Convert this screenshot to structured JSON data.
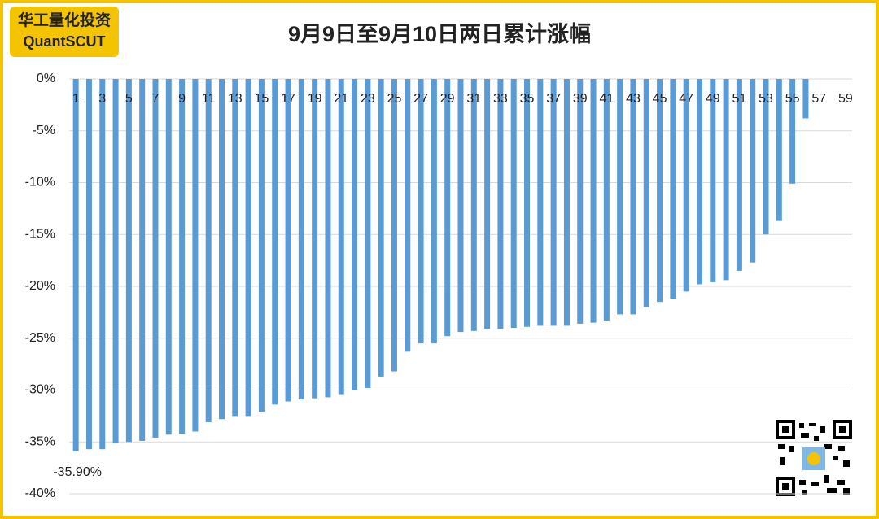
{
  "chart_data": {
    "type": "bar",
    "title": "9月9日至9月10日两日累计涨幅",
    "logo": {
      "cn": "华工量化投资",
      "en": "QuantSCUT"
    },
    "categories": [
      1,
      null,
      3,
      null,
      5,
      null,
      7,
      null,
      9,
      null,
      11,
      null,
      13,
      null,
      15,
      null,
      17,
      null,
      19,
      null,
      21,
      null,
      23,
      null,
      25,
      null,
      27,
      null,
      29,
      null,
      31,
      null,
      33,
      null,
      35,
      null,
      37,
      null,
      39,
      null,
      41,
      null,
      43,
      null,
      45,
      null,
      47,
      null,
      49,
      null,
      51,
      null,
      53,
      null,
      55,
      null,
      57,
      null,
      59
    ],
    "values": [
      -35.9,
      -35.7,
      -35.7,
      -35.1,
      -35.0,
      -34.9,
      -34.6,
      -34.3,
      -34.2,
      -34.0,
      -33.1,
      -32.8,
      -32.5,
      -32.5,
      -32.1,
      -31.4,
      -31.1,
      -30.9,
      -30.8,
      -30.7,
      -30.4,
      -30.0,
      -29.8,
      -28.7,
      -28.2,
      -26.3,
      -25.5,
      -25.5,
      -24.8,
      -24.4,
      -24.3,
      -24.1,
      -24.1,
      -24.0,
      -23.9,
      -23.8,
      -23.8,
      -23.8,
      -23.6,
      -23.5,
      -23.3,
      -22.7,
      -22.7,
      -22.0,
      -21.5,
      -21.2,
      -20.5,
      -19.8,
      -19.6,
      -19.4,
      -18.5,
      -17.7,
      -15.0,
      -13.7,
      -10.1,
      -3.8,
      0,
      0,
      0
    ],
    "value_labels": [
      "-35.90%",
      null,
      null,
      null,
      null,
      null,
      null,
      null,
      null,
      null,
      null,
      null,
      null,
      null,
      null,
      null,
      null,
      null,
      null,
      null,
      null,
      null,
      null,
      null,
      null,
      null,
      null,
      null,
      null,
      null,
      null,
      null,
      null,
      null,
      null,
      null,
      null,
      null,
      null,
      null,
      null,
      null,
      null,
      null,
      null,
      null,
      null,
      null,
      null,
      null,
      null,
      null,
      null,
      null,
      null,
      null,
      null,
      null,
      null
    ],
    "color": "#5b9bd5",
    "ylim": [
      -40,
      0
    ],
    "yticks": [
      {
        "value": 0,
        "label": "0%"
      },
      {
        "value": -5,
        "label": "-5%"
      },
      {
        "value": -10,
        "label": "-10%"
      },
      {
        "value": -15,
        "label": "-15%"
      },
      {
        "value": -20,
        "label": "-20%"
      },
      {
        "value": -25,
        "label": "-25%"
      },
      {
        "value": -30,
        "label": "-30%"
      },
      {
        "value": -35,
        "label": "-35%"
      },
      {
        "value": -40,
        "label": "-40%"
      }
    ],
    "grid": true
  }
}
